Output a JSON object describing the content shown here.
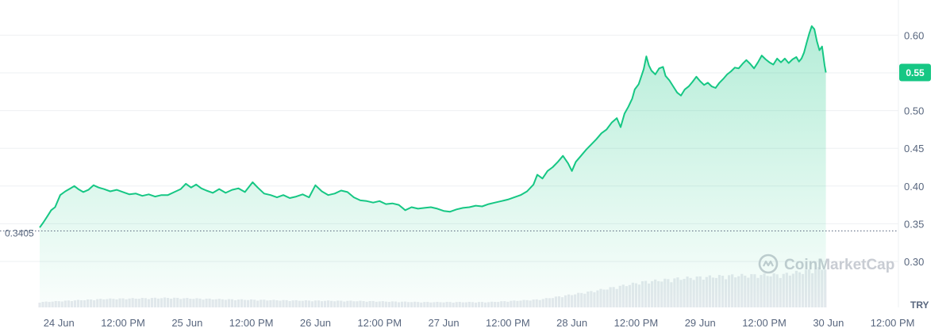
{
  "chart_data": {
    "type": "area",
    "currency": "TRY",
    "y_ticks": [
      0.3,
      0.35,
      0.4,
      0.45,
      0.5,
      0.55,
      0.6
    ],
    "ylim": [
      0.27,
      0.645
    ],
    "x_ticks": [
      "24 Jun",
      "12:00 PM",
      "25 Jun",
      "12:00 PM",
      "26 Jun",
      "12:00 PM",
      "27 Jun",
      "12:00 PM",
      "28 Jun",
      "12:00 PM",
      "29 Jun",
      "12:00 PM",
      "30 Jun",
      "12:00 PM"
    ],
    "reference": {
      "value": 0.3405,
      "label": "0.3405"
    },
    "current": {
      "value": 0.5505,
      "label": "0.55"
    },
    "watermark": "CoinMarketCap",
    "colors": {
      "line": "#16c784",
      "area_top": "#16c784",
      "label_bg": "#16c784",
      "volume": "#e6e9ee"
    },
    "series": [
      {
        "values": [
          [
            0.0,
            0.345
          ],
          [
            0.03,
            0.352
          ],
          [
            0.06,
            0.36
          ],
          [
            0.09,
            0.368
          ],
          [
            0.12,
            0.372
          ],
          [
            0.16,
            0.388
          ],
          [
            0.2,
            0.393
          ],
          [
            0.24,
            0.397
          ],
          [
            0.27,
            0.4
          ],
          [
            0.3,
            0.396
          ],
          [
            0.34,
            0.392
          ],
          [
            0.38,
            0.395
          ],
          [
            0.42,
            0.401
          ],
          [
            0.46,
            0.398
          ],
          [
            0.5,
            0.396
          ],
          [
            0.55,
            0.393
          ],
          [
            0.6,
            0.395
          ],
          [
            0.65,
            0.392
          ],
          [
            0.7,
            0.389
          ],
          [
            0.75,
            0.39
          ],
          [
            0.8,
            0.387
          ],
          [
            0.85,
            0.389
          ],
          [
            0.9,
            0.386
          ],
          [
            0.95,
            0.388
          ],
          [
            1.0,
            0.388
          ],
          [
            1.05,
            0.392
          ],
          [
            1.1,
            0.396
          ],
          [
            1.14,
            0.403
          ],
          [
            1.18,
            0.398
          ],
          [
            1.22,
            0.402
          ],
          [
            1.26,
            0.397
          ],
          [
            1.3,
            0.394
          ],
          [
            1.35,
            0.391
          ],
          [
            1.4,
            0.396
          ],
          [
            1.45,
            0.391
          ],
          [
            1.5,
            0.395
          ],
          [
            1.55,
            0.397
          ],
          [
            1.6,
            0.392
          ],
          [
            1.66,
            0.405
          ],
          [
            1.7,
            0.398
          ],
          [
            1.75,
            0.39
          ],
          [
            1.8,
            0.388
          ],
          [
            1.85,
            0.385
          ],
          [
            1.9,
            0.388
          ],
          [
            1.95,
            0.384
          ],
          [
            2.0,
            0.386
          ],
          [
            2.05,
            0.389
          ],
          [
            2.1,
            0.385
          ],
          [
            2.15,
            0.401
          ],
          [
            2.2,
            0.393
          ],
          [
            2.25,
            0.388
          ],
          [
            2.3,
            0.39
          ],
          [
            2.35,
            0.394
          ],
          [
            2.4,
            0.392
          ],
          [
            2.45,
            0.385
          ],
          [
            2.5,
            0.381
          ],
          [
            2.55,
            0.38
          ],
          [
            2.6,
            0.378
          ],
          [
            2.65,
            0.38
          ],
          [
            2.7,
            0.376
          ],
          [
            2.75,
            0.377
          ],
          [
            2.8,
            0.375
          ],
          [
            2.85,
            0.368
          ],
          [
            2.9,
            0.372
          ],
          [
            2.95,
            0.37
          ],
          [
            3.0,
            0.371
          ],
          [
            3.05,
            0.372
          ],
          [
            3.1,
            0.37
          ],
          [
            3.15,
            0.367
          ],
          [
            3.2,
            0.366
          ],
          [
            3.25,
            0.369
          ],
          [
            3.3,
            0.371
          ],
          [
            3.35,
            0.372
          ],
          [
            3.4,
            0.374
          ],
          [
            3.45,
            0.373
          ],
          [
            3.5,
            0.376
          ],
          [
            3.55,
            0.378
          ],
          [
            3.6,
            0.38
          ],
          [
            3.65,
            0.382
          ],
          [
            3.7,
            0.385
          ],
          [
            3.75,
            0.388
          ],
          [
            3.8,
            0.393
          ],
          [
            3.85,
            0.402
          ],
          [
            3.88,
            0.415
          ],
          [
            3.92,
            0.41
          ],
          [
            3.96,
            0.42
          ],
          [
            4.0,
            0.425
          ],
          [
            4.04,
            0.432
          ],
          [
            4.08,
            0.44
          ],
          [
            4.12,
            0.43
          ],
          [
            4.15,
            0.42
          ],
          [
            4.18,
            0.432
          ],
          [
            4.22,
            0.44
          ],
          [
            4.26,
            0.448
          ],
          [
            4.3,
            0.455
          ],
          [
            4.34,
            0.462
          ],
          [
            4.38,
            0.47
          ],
          [
            4.42,
            0.475
          ],
          [
            4.46,
            0.484
          ],
          [
            4.5,
            0.49
          ],
          [
            4.53,
            0.478
          ],
          [
            4.56,
            0.496
          ],
          [
            4.59,
            0.505
          ],
          [
            4.62,
            0.516
          ],
          [
            4.64,
            0.528
          ],
          [
            4.67,
            0.535
          ],
          [
            4.69,
            0.545
          ],
          [
            4.71,
            0.555
          ],
          [
            4.73,
            0.572
          ],
          [
            4.75,
            0.56
          ],
          [
            4.77,
            0.553
          ],
          [
            4.8,
            0.548
          ],
          [
            4.83,
            0.556
          ],
          [
            4.86,
            0.558
          ],
          [
            4.88,
            0.546
          ],
          [
            4.91,
            0.54
          ],
          [
            4.94,
            0.532
          ],
          [
            4.97,
            0.524
          ],
          [
            5.0,
            0.52
          ],
          [
            5.03,
            0.528
          ],
          [
            5.06,
            0.532
          ],
          [
            5.09,
            0.538
          ],
          [
            5.12,
            0.545
          ],
          [
            5.15,
            0.539
          ],
          [
            5.18,
            0.534
          ],
          [
            5.21,
            0.537
          ],
          [
            5.24,
            0.532
          ],
          [
            5.27,
            0.53
          ],
          [
            5.3,
            0.537
          ],
          [
            5.33,
            0.542
          ],
          [
            5.36,
            0.548
          ],
          [
            5.39,
            0.552
          ],
          [
            5.42,
            0.557
          ],
          [
            5.45,
            0.556
          ],
          [
            5.48,
            0.562
          ],
          [
            5.51,
            0.567
          ],
          [
            5.54,
            0.562
          ],
          [
            5.57,
            0.556
          ],
          [
            5.6,
            0.564
          ],
          [
            5.63,
            0.573
          ],
          [
            5.66,
            0.568
          ],
          [
            5.69,
            0.564
          ],
          [
            5.72,
            0.561
          ],
          [
            5.75,
            0.569
          ],
          [
            5.78,
            0.564
          ],
          [
            5.81,
            0.569
          ],
          [
            5.84,
            0.563
          ],
          [
            5.87,
            0.568
          ],
          [
            5.9,
            0.571
          ],
          [
            5.92,
            0.565
          ],
          [
            5.94,
            0.569
          ],
          [
            5.96,
            0.577
          ],
          [
            5.98,
            0.59
          ],
          [
            6.0,
            0.602
          ],
          [
            6.02,
            0.612
          ],
          [
            6.04,
            0.608
          ],
          [
            6.06,
            0.592
          ],
          [
            6.08,
            0.58
          ],
          [
            6.1,
            0.585
          ],
          [
            6.12,
            0.56
          ],
          [
            6.13,
            0.5505
          ]
        ]
      }
    ],
    "volume": [
      [
        0.0,
        0.1
      ],
      [
        0.5,
        0.16
      ],
      [
        1.0,
        0.18
      ],
      [
        1.5,
        0.15
      ],
      [
        2.0,
        0.13
      ],
      [
        2.5,
        0.12
      ],
      [
        3.0,
        0.1
      ],
      [
        3.5,
        0.1
      ],
      [
        3.9,
        0.15
      ],
      [
        4.3,
        0.3
      ],
      [
        4.7,
        0.48
      ],
      [
        5.0,
        0.55
      ],
      [
        5.4,
        0.6
      ],
      [
        5.8,
        0.62
      ],
      [
        6.13,
        0.75
      ]
    ]
  }
}
